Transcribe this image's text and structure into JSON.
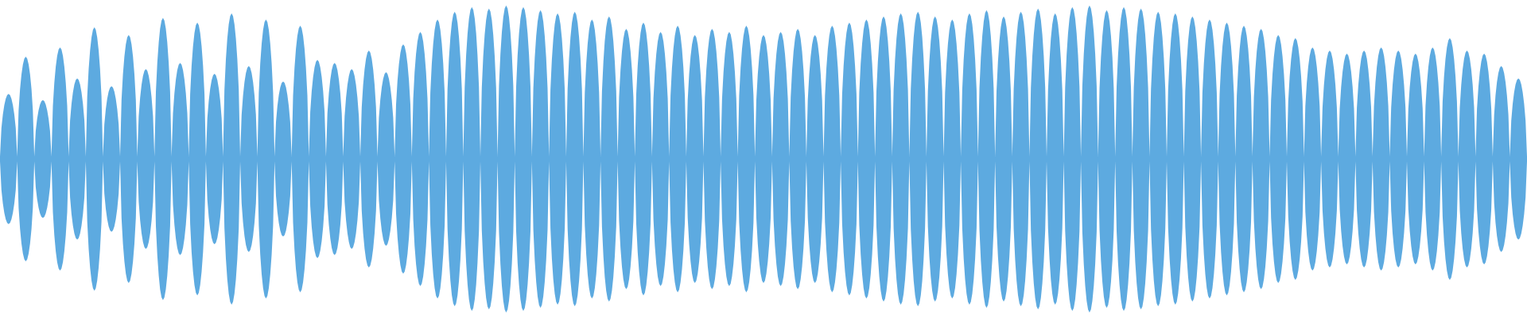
{
  "waveform": {
    "color": "#5daae0",
    "background": "#ffffff",
    "peaks": [
      0.42,
      0.66,
      0.38,
      0.72,
      0.52,
      0.85,
      0.47,
      0.8,
      0.58,
      0.91,
      0.62,
      0.88,
      0.55,
      0.94,
      0.6,
      0.9,
      0.5,
      0.86,
      0.64,
      0.62,
      0.58,
      0.7,
      0.56,
      0.74,
      0.82,
      0.9,
      0.95,
      0.98,
      0.97,
      0.99,
      0.98,
      0.96,
      0.94,
      0.95,
      0.9,
      0.92,
      0.84,
      0.88,
      0.82,
      0.86,
      0.8,
      0.84,
      0.82,
      0.86,
      0.8,
      0.82,
      0.84,
      0.8,
      0.86,
      0.88,
      0.9,
      0.92,
      0.94,
      0.95,
      0.92,
      0.9,
      0.94,
      0.96,
      0.92,
      0.95,
      0.97,
      0.94,
      0.98,
      0.99,
      0.96,
      0.98,
      0.97,
      0.95,
      0.94,
      0.92,
      0.9,
      0.88,
      0.86,
      0.84,
      0.8,
      0.78,
      0.72,
      0.7,
      0.68,
      0.7,
      0.72,
      0.7,
      0.68,
      0.72,
      0.78,
      0.7,
      0.68,
      0.6,
      0.52
    ]
  }
}
